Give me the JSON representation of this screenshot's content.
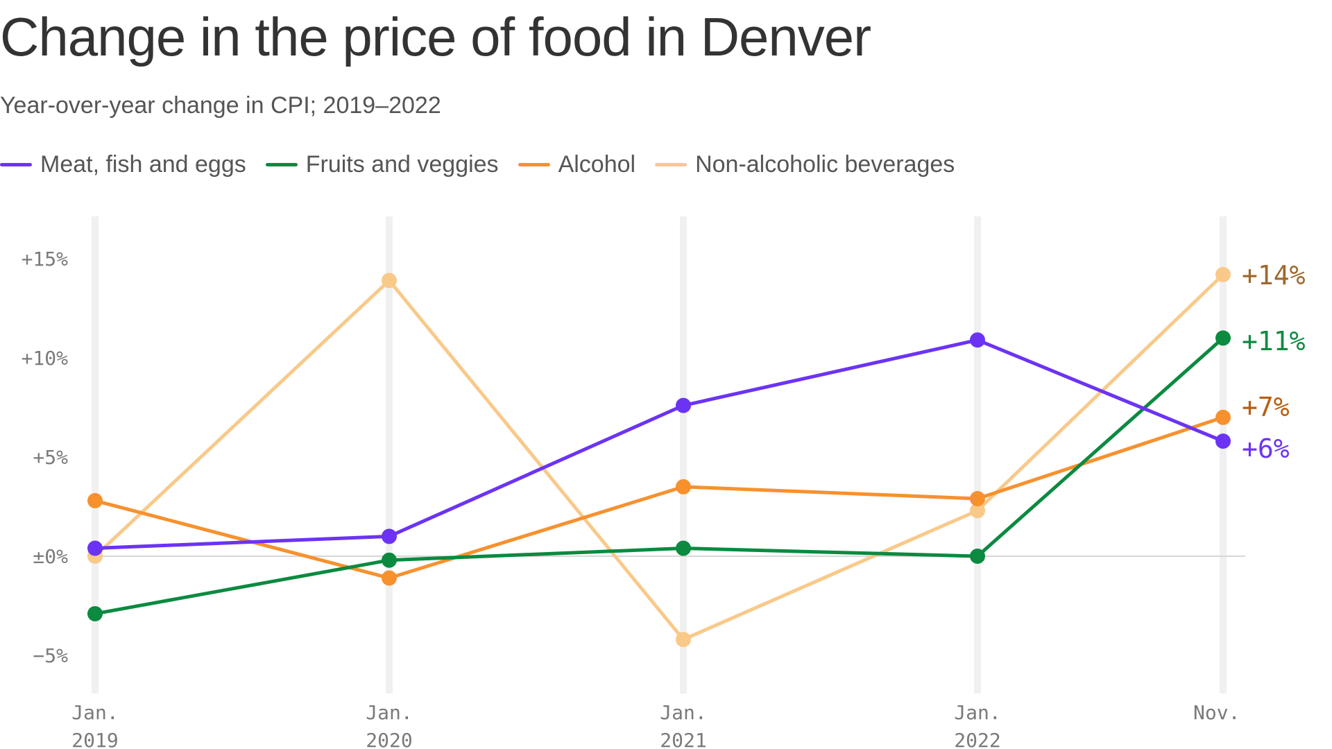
{
  "chart_data": {
    "type": "line",
    "title": "Change in the price of food in Denver",
    "subtitle": "Year-over-year change in CPI; 2019–2022",
    "x": [
      "Jan. 2019",
      "Jan. 2020",
      "Jan. 2021",
      "Jan. 2022",
      "Nov."
    ],
    "x_tick_labels": [
      [
        "Jan.",
        "2019"
      ],
      [
        "Jan.",
        "2020"
      ],
      [
        "Jan.",
        "2021"
      ],
      [
        "Jan.",
        "2022"
      ],
      [
        "Nov.",
        ""
      ]
    ],
    "y_ticks": [
      15,
      10,
      5,
      0,
      -5
    ],
    "y_tick_labels": [
      "+15%",
      "+10%",
      "+5%",
      "±0%",
      "−5%"
    ],
    "ylim": [
      -7,
      17
    ],
    "grid": "vertical",
    "legend_position": "top-left",
    "series": [
      {
        "name": "Non-alcoholic beverages",
        "color": "#f9c98a",
        "label_color": "#a0682c",
        "values": [
          0,
          13.9,
          -4.2,
          2.3,
          14.2
        ],
        "end_label": "+14%"
      },
      {
        "name": "Alcohol",
        "color": "#f7912e",
        "label_color": "#b85e10",
        "values": [
          2.8,
          -1.1,
          3.5,
          2.9,
          7.0
        ],
        "end_label": "+7%"
      },
      {
        "name": "Fruits and veggies",
        "color": "#0b8a40",
        "label_color": "#0b8a40",
        "values": [
          -2.9,
          -0.2,
          0.4,
          0.0,
          11.0
        ],
        "end_label": "+11%"
      },
      {
        "name": "Meat, fish and eggs",
        "color": "#6b33f5",
        "label_color": "#6b33f5",
        "values": [
          0.4,
          1.0,
          7.6,
          10.9,
          5.8
        ],
        "end_label": "+6%"
      }
    ]
  },
  "legend": [
    {
      "label": "Meat, fish and eggs",
      "color": "#6b33f5"
    },
    {
      "label": "Fruits and veggies",
      "color": "#0b8a40"
    },
    {
      "label": "Alcohol",
      "color": "#f7912e"
    },
    {
      "label": "Non-alcoholic beverages",
      "color": "#f9c98a"
    }
  ]
}
